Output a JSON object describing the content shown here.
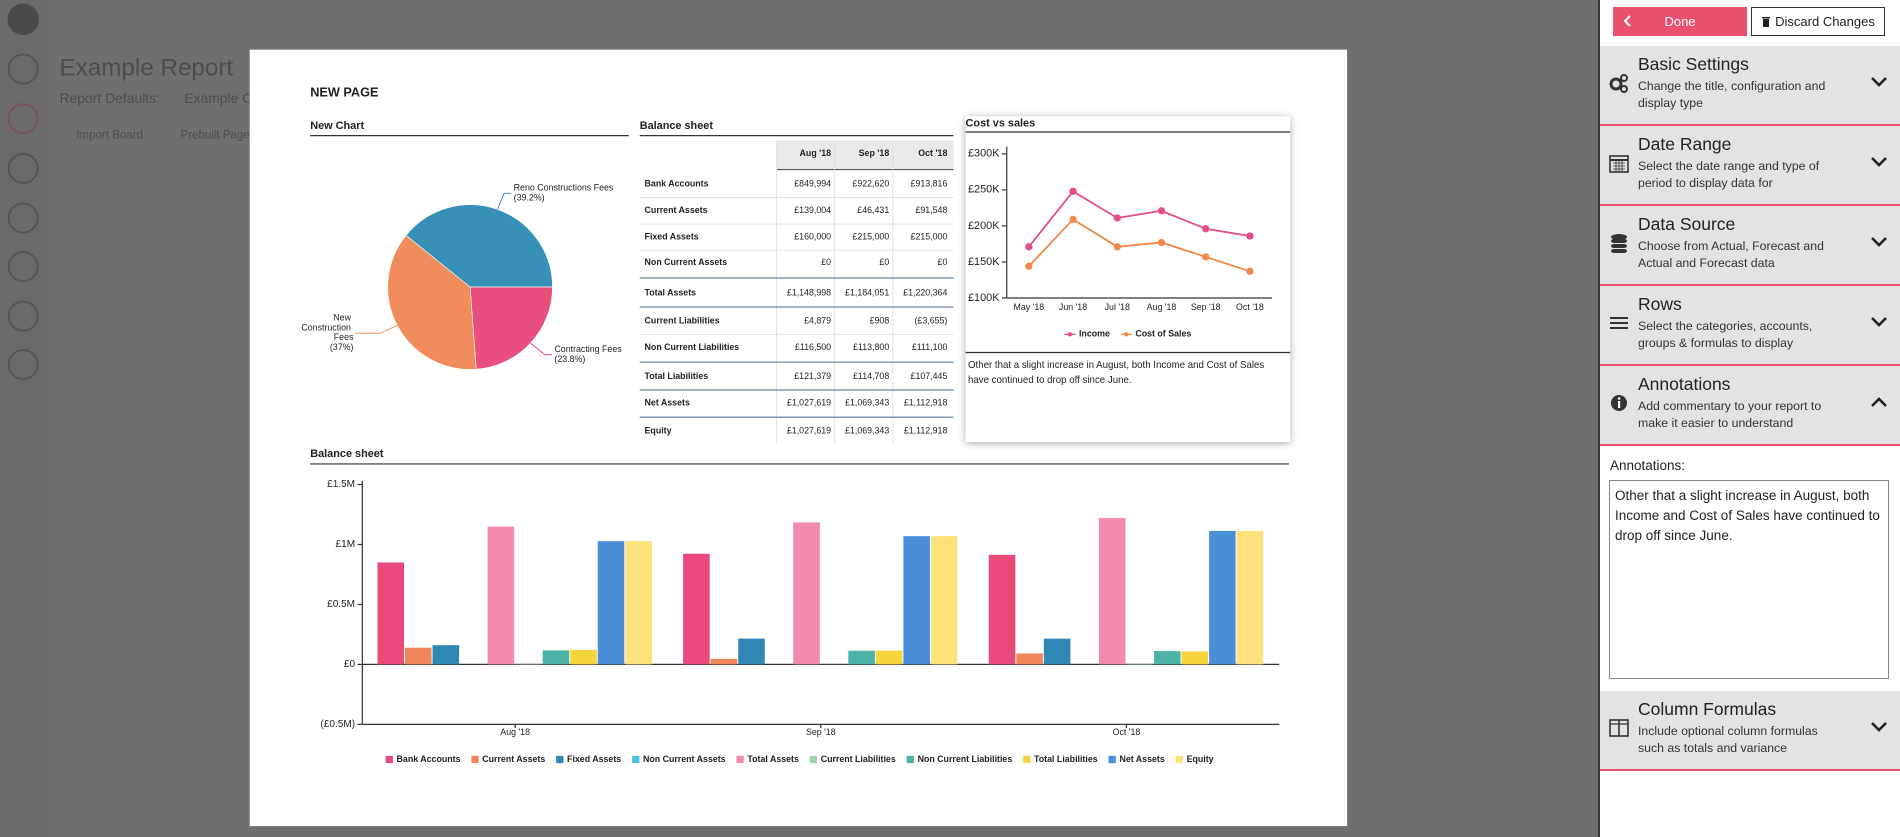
{
  "background": {
    "title": "Example Report",
    "defaults_label": "Report Defaults:",
    "defaults_value": "Example C",
    "actions": [
      "Import Board",
      "Prebuilt Page"
    ]
  },
  "page_title": "NEW PAGE",
  "annotation": "Other that a slight increase in August, both Income and Cost of Sales have continued to drop off since June.",
  "table": {
    "title": "Balance sheet",
    "columns": [
      "Aug '18",
      "Sep '18",
      "Oct '18"
    ],
    "rows": [
      [
        "Bank Accounts",
        "£849,994",
        "£922,620",
        "£913,816"
      ],
      [
        "Current Assets",
        "£139,004",
        "£46,431",
        "£91,548"
      ],
      [
        "Fixed Assets",
        "£160,000",
        "£215,000",
        "£215,000"
      ],
      [
        "Non Current Assets",
        "£0",
        "£0",
        "£0"
      ],
      [
        "Total Assets",
        "£1,148,998",
        "£1,184,051",
        "£1,220,364"
      ],
      [
        "Current Liabilities",
        "£4,879",
        "£908",
        "(£3,655)"
      ],
      [
        "Non Current Liabilities",
        "£116,500",
        "£113,800",
        "£111,100"
      ],
      [
        "Total Liabilities",
        "£121,379",
        "£114,708",
        "£107,445"
      ],
      [
        "Net Assets",
        "£1,027,619",
        "£1,069,343",
        "£1,112,918"
      ],
      [
        "Equity",
        "£1,027,619",
        "£1,069,343",
        "£1,112,918"
      ]
    ]
  },
  "chart_data": [
    {
      "type": "pie",
      "title": "New Chart",
      "categories": [
        "Reno Constructions Fees",
        "New Construction Fees",
        "Contracting Fees"
      ],
      "values": [
        39.2,
        37,
        23.8
      ],
      "value_labels": [
        "(39.2%)",
        "(37%)",
        "(23.8%)"
      ],
      "colors": [
        "#3690b8",
        "#f18d5c",
        "#e84f7d"
      ]
    },
    {
      "type": "line",
      "title": "Cost vs sales",
      "categories": [
        "May '18",
        "Jun '18",
        "Jul '18",
        "Aug '18",
        "Sep '18",
        "Oct '18"
      ],
      "series": [
        {
          "name": "Income",
          "color": "#e64c89",
          "values": [
            171000,
            248000,
            211000,
            221000,
            196000,
            186000
          ]
        },
        {
          "name": "Cost of Sales",
          "color": "#f08a4b",
          "values": [
            144000,
            209000,
            171000,
            177000,
            157000,
            137000
          ]
        }
      ],
      "ylim": [
        100000,
        300000
      ],
      "yticks": [
        {
          "value": 100000,
          "label": "£100K"
        },
        {
          "value": 150000,
          "label": "£150K"
        },
        {
          "value": 200000,
          "label": "£200K"
        },
        {
          "value": 250000,
          "label": "£250K"
        },
        {
          "value": 300000,
          "label": "£300K"
        }
      ],
      "legend": "bottom"
    },
    {
      "type": "bar",
      "title": "Balance sheet",
      "categories": [
        "Aug '18",
        "Sep '18",
        "Oct '18"
      ],
      "series": [
        {
          "name": "Bank Accounts",
          "color": "#e84a7a",
          "values": [
            849994,
            922620,
            913816
          ]
        },
        {
          "name": "Current Assets",
          "color": "#f0875a",
          "values": [
            139004,
            46431,
            91548
          ]
        },
        {
          "name": "Fixed Assets",
          "color": "#2f88b3",
          "values": [
            160000,
            215000,
            215000
          ]
        },
        {
          "name": "Non Current Assets",
          "color": "#4fc3e0",
          "values": [
            0,
            0,
            0
          ]
        },
        {
          "name": "Total Assets",
          "color": "#f28bab",
          "values": [
            1148998,
            1184051,
            1220364
          ]
        },
        {
          "name": "Current Liabilities",
          "color": "#9fd6a8",
          "values": [
            4879,
            908,
            -3655
          ]
        },
        {
          "name": "Non Current Liabilities",
          "color": "#4db3a6",
          "values": [
            116500,
            113800,
            111100
          ]
        },
        {
          "name": "Total Liabilities",
          "color": "#f5d43c",
          "values": [
            121379,
            114708,
            107445
          ]
        },
        {
          "name": "Net Assets",
          "color": "#4a8fd8",
          "values": [
            1027619,
            1069343,
            1112918
          ]
        },
        {
          "name": "Equity",
          "color": "#fde17a",
          "values": [
            1027619,
            1069343,
            1112918
          ]
        }
      ],
      "ylim": [
        -500000,
        1500000
      ],
      "yticks": [
        {
          "value": -500000,
          "label": "(£0.5M)"
        },
        {
          "value": 0,
          "label": "£0"
        },
        {
          "value": 500000,
          "label": "£0.5M"
        },
        {
          "value": 1000000,
          "label": "£1M"
        },
        {
          "value": 1500000,
          "label": "£1.5M"
        }
      ],
      "legend": "bottom"
    }
  ],
  "sidebar": {
    "done": "Done",
    "discard": "Discard Changes",
    "sections": [
      {
        "title": "Basic Settings",
        "description": "Change the title, configuration and display type"
      },
      {
        "title": "Date Range",
        "description": "Select the date range and type of period to display data for"
      },
      {
        "title": "Data Source",
        "description": "Choose from Actual, Forecast and Actual and Forecast data"
      },
      {
        "title": "Rows",
        "description": "Select the categories, accounts, groups & formulas to display"
      },
      {
        "title": "Annotations",
        "description": "Add commentary to your report to make it easier to understand"
      },
      {
        "title": "Column Formulas",
        "description": "Include optional column formulas such as totals and variance"
      }
    ],
    "annotations_label": "Annotations:"
  }
}
